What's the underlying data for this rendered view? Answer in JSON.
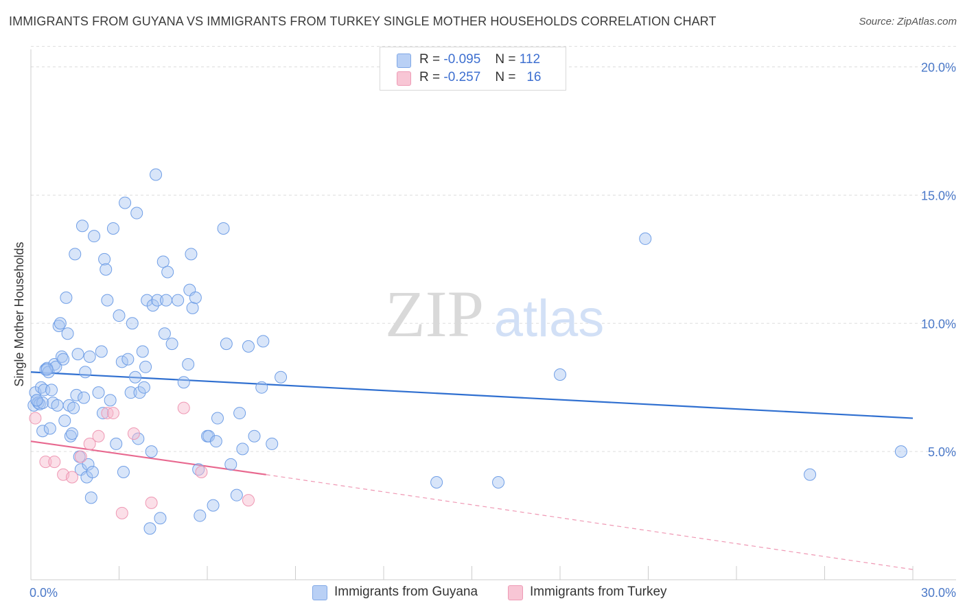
{
  "title": "IMMIGRANTS FROM GUYANA VS IMMIGRANTS FROM TURKEY SINGLE MOTHER HOUSEHOLDS CORRELATION CHART",
  "source": "Source: ZipAtlas.com",
  "watermark": {
    "zip": "ZIP",
    "atlas": "atlas"
  },
  "legend_top": {
    "rows": [
      {
        "r_label": "R =",
        "r_value": "-0.095",
        "n_label": "N =",
        "n_value": "112",
        "color": "#a9c6f2"
      },
      {
        "r_label": "R =",
        "r_value": "-0.257",
        "n_label": "N =",
        "n_value": "16",
        "color": "#f6b9cc"
      }
    ]
  },
  "legend_bottom": [
    {
      "label": "Immigrants from Guyana",
      "color": "#a9c6f2"
    },
    {
      "label": "Immigrants from Turkey",
      "color": "#f6b9cc"
    }
  ],
  "chart_data": {
    "type": "scatter",
    "title": "IMMIGRANTS FROM GUYANA VS IMMIGRANTS FROM TURKEY SINGLE MOTHER HOUSEHOLDS CORRELATION CHART",
    "xlabel": "",
    "ylabel": "Single Mother Households",
    "xlim": [
      0,
      30
    ],
    "ylim": [
      0,
      20.8
    ],
    "x_tick_labels": [
      "0.0%",
      "30.0%"
    ],
    "y_ticks": [
      5,
      10,
      15,
      20
    ],
    "y_tick_labels": [
      "5.0%",
      "10.0%",
      "15.0%",
      "20.0%"
    ],
    "grid": true,
    "legend_position": "top-center",
    "series": [
      {
        "name": "Immigrants from Guyana",
        "color": "#6f9ee6",
        "trend": {
          "x": [
            0,
            30
          ],
          "y": [
            8.1,
            6.3
          ]
        },
        "points": [
          [
            0.1,
            6.8
          ],
          [
            0.15,
            7.3
          ],
          [
            0.2,
            7.0
          ],
          [
            0.25,
            6.9
          ],
          [
            0.3,
            6.85
          ],
          [
            0.35,
            7.5
          ],
          [
            0.4,
            5.8
          ],
          [
            0.4,
            6.9
          ],
          [
            0.45,
            7.4
          ],
          [
            0.5,
            8.2
          ],
          [
            0.55,
            8.25
          ],
          [
            0.6,
            8.1
          ],
          [
            0.65,
            5.9
          ],
          [
            0.7,
            7.4
          ],
          [
            0.75,
            6.9
          ],
          [
            0.8,
            8.4
          ],
          [
            0.85,
            8.3
          ],
          [
            0.9,
            6.8
          ],
          [
            0.95,
            9.9
          ],
          [
            1.0,
            10.0
          ],
          [
            1.05,
            8.7
          ],
          [
            1.1,
            8.6
          ],
          [
            1.15,
            6.2
          ],
          [
            1.2,
            11.0
          ],
          [
            1.25,
            9.6
          ],
          [
            1.3,
            6.8
          ],
          [
            1.35,
            5.6
          ],
          [
            1.4,
            5.7
          ],
          [
            1.45,
            6.7
          ],
          [
            1.5,
            12.7
          ],
          [
            1.55,
            7.2
          ],
          [
            1.6,
            8.8
          ],
          [
            1.65,
            4.8
          ],
          [
            1.7,
            4.3
          ],
          [
            1.75,
            13.8
          ],
          [
            1.8,
            7.1
          ],
          [
            1.85,
            8.1
          ],
          [
            1.9,
            4.0
          ],
          [
            1.95,
            4.5
          ],
          [
            2.0,
            8.7
          ],
          [
            2.05,
            3.2
          ],
          [
            2.1,
            4.2
          ],
          [
            2.15,
            13.4
          ],
          [
            2.3,
            7.3
          ],
          [
            2.4,
            8.9
          ],
          [
            2.45,
            6.5
          ],
          [
            2.5,
            12.5
          ],
          [
            2.55,
            12.1
          ],
          [
            2.6,
            10.9
          ],
          [
            2.7,
            7.0
          ],
          [
            2.8,
            13.7
          ],
          [
            2.9,
            5.3
          ],
          [
            3.0,
            10.3
          ],
          [
            3.1,
            8.5
          ],
          [
            3.15,
            4.2
          ],
          [
            3.2,
            14.7
          ],
          [
            3.3,
            8.6
          ],
          [
            3.4,
            7.3
          ],
          [
            3.45,
            10.0
          ],
          [
            3.55,
            7.9
          ],
          [
            3.6,
            14.3
          ],
          [
            3.65,
            5.5
          ],
          [
            3.7,
            7.3
          ],
          [
            3.8,
            8.9
          ],
          [
            3.85,
            7.5
          ],
          [
            3.9,
            8.3
          ],
          [
            3.95,
            10.9
          ],
          [
            4.05,
            2.0
          ],
          [
            4.1,
            5.0
          ],
          [
            4.15,
            10.7
          ],
          [
            4.25,
            15.8
          ],
          [
            4.3,
            10.9
          ],
          [
            4.4,
            2.4
          ],
          [
            4.5,
            12.4
          ],
          [
            4.55,
            9.6
          ],
          [
            4.6,
            10.9
          ],
          [
            4.65,
            12.0
          ],
          [
            4.8,
            9.2
          ],
          [
            5.0,
            10.9
          ],
          [
            5.2,
            7.7
          ],
          [
            5.35,
            8.4
          ],
          [
            5.4,
            11.3
          ],
          [
            5.45,
            12.7
          ],
          [
            5.5,
            10.6
          ],
          [
            5.6,
            11.0
          ],
          [
            5.7,
            4.3
          ],
          [
            5.75,
            2.5
          ],
          [
            6.0,
            5.6
          ],
          [
            6.05,
            5.6
          ],
          [
            6.2,
            2.9
          ],
          [
            6.3,
            5.4
          ],
          [
            6.35,
            6.3
          ],
          [
            6.55,
            13.7
          ],
          [
            6.65,
            9.2
          ],
          [
            6.8,
            4.5
          ],
          [
            7.0,
            3.3
          ],
          [
            7.1,
            6.5
          ],
          [
            7.2,
            5.1
          ],
          [
            7.4,
            9.1
          ],
          [
            7.6,
            5.6
          ],
          [
            7.85,
            7.5
          ],
          [
            7.9,
            9.3
          ],
          [
            8.2,
            5.3
          ],
          [
            8.5,
            7.9
          ],
          [
            13.8,
            3.8
          ],
          [
            15.9,
            3.8
          ],
          [
            18.0,
            8.0
          ],
          [
            20.9,
            13.3
          ],
          [
            26.5,
            4.1
          ],
          [
            29.6,
            5.0
          ],
          [
            0.2,
            7.0
          ],
          [
            0.55,
            8.2
          ]
        ]
      },
      {
        "name": "Immigrants from Turkey",
        "color": "#ef97b3",
        "trend": {
          "x": [
            0,
            8
          ],
          "y": [
            5.4,
            4.1
          ]
        },
        "trend_extension": {
          "x": [
            8,
            30
          ],
          "y": [
            4.1,
            0.4
          ]
        },
        "points": [
          [
            0.15,
            6.3
          ],
          [
            0.5,
            4.6
          ],
          [
            0.8,
            4.6
          ],
          [
            1.1,
            4.1
          ],
          [
            1.4,
            4.0
          ],
          [
            1.7,
            4.8
          ],
          [
            2.0,
            5.3
          ],
          [
            2.3,
            5.6
          ],
          [
            2.6,
            6.5
          ],
          [
            2.8,
            6.5
          ],
          [
            3.1,
            2.6
          ],
          [
            3.5,
            5.7
          ],
          [
            4.1,
            3.0
          ],
          [
            5.2,
            6.7
          ],
          [
            5.8,
            4.2
          ],
          [
            7.4,
            3.1
          ]
        ]
      }
    ]
  }
}
